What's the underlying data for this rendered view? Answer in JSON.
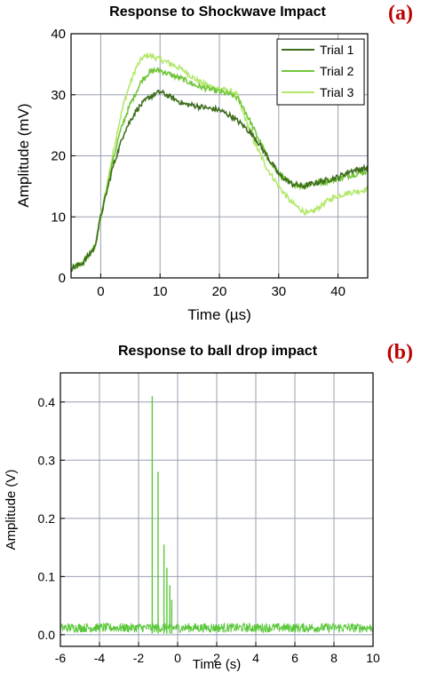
{
  "chart_data": [
    {
      "type": "line",
      "panel_label": "(a)",
      "title": "Response to Shockwave Impact",
      "xlabel": "Time (µs)",
      "ylabel": "Amplitude (mV)",
      "xlim": [
        -5,
        45
      ],
      "ylim": [
        0,
        40
      ],
      "xticks": [
        0,
        10,
        20,
        30,
        40
      ],
      "yticks": [
        0,
        10,
        20,
        30,
        40
      ],
      "grid": true,
      "legend_position": "top-right",
      "series": [
        {
          "name": "Trial 1",
          "color": "#3f6e1e",
          "x": [
            -5,
            -3,
            -1,
            0,
            1,
            2,
            3,
            4,
            6,
            8,
            10,
            12,
            14,
            16,
            18,
            20,
            22,
            24,
            26,
            28,
            30,
            32,
            34,
            36,
            38,
            40,
            42,
            45
          ],
          "y": [
            1.5,
            2.5,
            5,
            10,
            14,
            18,
            21,
            24,
            27.5,
            29.5,
            30.5,
            29.5,
            28.5,
            28.2,
            27.8,
            27.5,
            26.5,
            25,
            23,
            20,
            17,
            15.5,
            15,
            15.5,
            16,
            16.5,
            17.5,
            18
          ]
        },
        {
          "name": "Trial 2",
          "color": "#73c63c",
          "x": [
            -5,
            -3,
            -1,
            0,
            1,
            2,
            3,
            4,
            5,
            6,
            7,
            8,
            9,
            10,
            12,
            14,
            16,
            18,
            20,
            22,
            23,
            24,
            26,
            28,
            30,
            32,
            34,
            36,
            38,
            40,
            42,
            45
          ],
          "y": [
            1.5,
            2.5,
            5,
            10,
            14.5,
            19,
            23,
            26,
            28.5,
            30.5,
            32.5,
            33.5,
            34,
            34,
            33.2,
            32.5,
            31.5,
            31,
            30.5,
            30,
            29.5,
            28,
            24,
            20,
            17,
            15.5,
            15,
            15.5,
            15.8,
            16.2,
            16.8,
            17.5
          ]
        },
        {
          "name": "Trial 3",
          "color": "#b4e86c",
          "x": [
            -5,
            -3,
            -1,
            0,
            1,
            2,
            3,
            4,
            5,
            6,
            7,
            8,
            9,
            10,
            12,
            14,
            16,
            18,
            20,
            22,
            23,
            24,
            26,
            28,
            30,
            32,
            34,
            35,
            36,
            38,
            40,
            42,
            45
          ],
          "y": [
            1.5,
            2.5,
            5,
            10,
            15,
            20,
            25,
            29,
            32,
            34.5,
            36,
            36.5,
            36.2,
            35.8,
            35,
            34,
            32.5,
            31.5,
            31,
            30.5,
            30,
            27,
            22,
            18,
            15,
            12.5,
            11,
            10.5,
            11,
            12.5,
            13.5,
            14,
            14.5
          ]
        }
      ]
    },
    {
      "type": "line",
      "panel_label": "(b)",
      "title": "Response to ball drop impact",
      "xlabel": "Time (s)",
      "ylabel": "Amplitude (V)",
      "xlim": [
        -6,
        10
      ],
      "ylim": [
        -0.02,
        0.45
      ],
      "xticks": [
        -6,
        -4,
        -2,
        0,
        2,
        4,
        6,
        8,
        10
      ],
      "yticks": [
        0.0,
        0.1,
        0.2,
        0.3,
        0.4
      ],
      "ytick_labels": [
        "0.0",
        "0.1",
        "0.2",
        "0.3",
        "0.4"
      ],
      "grid": true,
      "series": [
        {
          "color": "#5ac73a",
          "baseline": 0.012,
          "noise": 0.008,
          "spikes": [
            {
              "x": -1.3,
              "y": 0.41
            },
            {
              "x": -1.0,
              "y": 0.28
            },
            {
              "x": -0.7,
              "y": 0.155
            },
            {
              "x": -0.55,
              "y": 0.115
            },
            {
              "x": -0.4,
              "y": 0.085
            },
            {
              "x": -0.3,
              "y": 0.06
            }
          ]
        }
      ]
    }
  ]
}
